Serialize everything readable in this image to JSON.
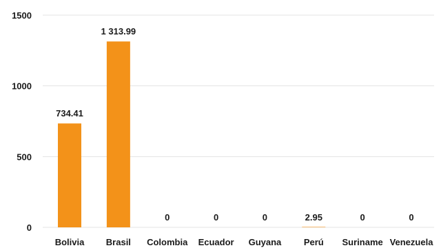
{
  "chart_data": {
    "type": "bar",
    "categories": [
      "Bolivia",
      "Brasil",
      "Colombia",
      "Ecuador",
      "Guyana",
      "Perú",
      "Suriname",
      "Venezuela"
    ],
    "values": [
      734.41,
      1313.99,
      0,
      0,
      0,
      2.95,
      0,
      0
    ],
    "data_labels": [
      "734.41",
      "1 313.99",
      "0",
      "0",
      "0",
      "2.95",
      "0",
      "0"
    ],
    "y_ticks": [
      0,
      500,
      1000,
      1500
    ],
    "y_tick_labels": [
      "0",
      "500",
      "1000",
      "1500"
    ],
    "ylim": [
      0,
      1500
    ],
    "grid": true,
    "bar_color": "#f39219",
    "title": "",
    "xlabel": "",
    "ylabel": ""
  }
}
